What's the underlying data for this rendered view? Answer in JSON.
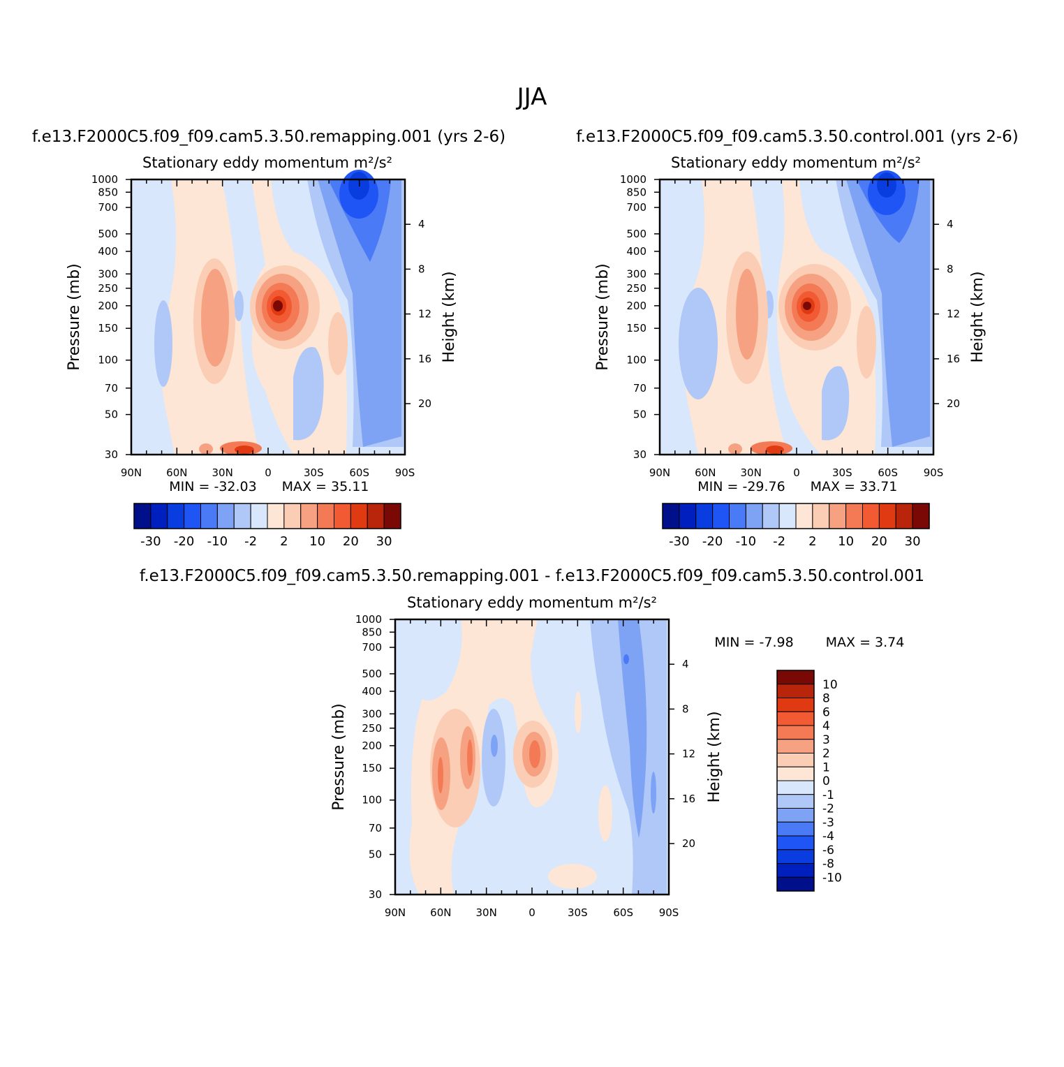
{
  "page": {
    "title": "JJA"
  },
  "colors": {
    "scale": [
      "#000f8a",
      "#001fbf",
      "#0a3de0",
      "#1f55f5",
      "#4a7af5",
      "#7ea3f5",
      "#b0c8f7",
      "#d8e7fb",
      "#fde6d6",
      "#fbcdb4",
      "#f6a282",
      "#f47a55",
      "#f15a32",
      "#e03a12",
      "#b8250a",
      "#7a0804"
    ]
  },
  "chart_data": [
    {
      "type": "heatmap",
      "panel": "top-left",
      "title": "f.e13.F2000C5.f09_f09.cam5.3.50.remapping.001  (yrs 2-6)",
      "subtitle": "Stationary eddy momentum  m²/s²",
      "xlabel": "",
      "ylabel": "Pressure (mb)",
      "y2label": "Height (km)",
      "x_ticks": [
        "90N",
        "60N",
        "30N",
        "0",
        "30S",
        "60S",
        "90S"
      ],
      "y_ticks": [
        "30",
        "50",
        "70",
        "100",
        "150",
        "200",
        "250",
        "300",
        "400",
        "500",
        "700",
        "850",
        "1000"
      ],
      "y_tick_values": [
        30,
        50,
        70,
        100,
        150,
        200,
        250,
        300,
        400,
        500,
        700,
        850,
        1000
      ],
      "y2_ticks": [
        "20",
        "16",
        "12",
        "8",
        "4"
      ],
      "y2_tick_values": [
        20,
        16,
        12,
        8,
        4
      ],
      "ylim": [
        1000,
        30
      ],
      "min_label": "MIN = -32.03",
      "max_label": "MAX = 35.11",
      "colorbar_labels": [
        "-30",
        "-20",
        "-10",
        "-2",
        "2",
        "10",
        "20",
        "30"
      ],
      "colorbar_orientation": "horizontal"
    },
    {
      "type": "heatmap",
      "panel": "top-right",
      "title": "f.e13.F2000C5.f09_f09.cam5.3.50.control.001  (yrs 2-6)",
      "subtitle": "Stationary eddy momentum  m²/s²",
      "xlabel": "",
      "ylabel": "Pressure (mb)",
      "y2label": "Height (km)",
      "x_ticks": [
        "90N",
        "60N",
        "30N",
        "0",
        "30S",
        "60S",
        "90S"
      ],
      "y_ticks": [
        "30",
        "50",
        "70",
        "100",
        "150",
        "200",
        "250",
        "300",
        "400",
        "500",
        "700",
        "850",
        "1000"
      ],
      "y_tick_values": [
        30,
        50,
        70,
        100,
        150,
        200,
        250,
        300,
        400,
        500,
        700,
        850,
        1000
      ],
      "y2_ticks": [
        "20",
        "16",
        "12",
        "8",
        "4"
      ],
      "y2_tick_values": [
        20,
        16,
        12,
        8,
        4
      ],
      "ylim": [
        1000,
        30
      ],
      "min_label": "MIN = -29.76",
      "max_label": "MAX = 33.71",
      "colorbar_labels": [
        "-30",
        "-20",
        "-10",
        "-2",
        "2",
        "10",
        "20",
        "30"
      ],
      "colorbar_orientation": "horizontal"
    },
    {
      "type": "heatmap",
      "panel": "bottom",
      "title": "f.e13.F2000C5.f09_f09.cam5.3.50.remapping.001 - f.e13.F2000C5.f09_f09.cam5.3.50.control.001",
      "subtitle": "Stationary eddy momentum  m²/s²",
      "xlabel": "",
      "ylabel": "Pressure (mb)",
      "y2label": "Height (km)",
      "x_ticks": [
        "90N",
        "60N",
        "30N",
        "0",
        "30S",
        "60S",
        "90S"
      ],
      "y_ticks": [
        "30",
        "50",
        "70",
        "100",
        "150",
        "200",
        "250",
        "300",
        "400",
        "500",
        "700",
        "850",
        "1000"
      ],
      "y_tick_values": [
        30,
        50,
        70,
        100,
        150,
        200,
        250,
        300,
        400,
        500,
        700,
        850,
        1000
      ],
      "y2_ticks": [
        "20",
        "16",
        "12",
        "8",
        "4"
      ],
      "y2_tick_values": [
        20,
        16,
        12,
        8,
        4
      ],
      "ylim": [
        1000,
        30
      ],
      "min_label": "MIN = -7.98",
      "max_label": "MAX = 3.74",
      "colorbar_labels": [
        "10",
        "8",
        "6",
        "4",
        "3",
        "2",
        "1",
        "0",
        "-1",
        "-2",
        "-3",
        "-4",
        "-6",
        "-8",
        "-10"
      ],
      "colorbar_orientation": "vertical"
    }
  ]
}
